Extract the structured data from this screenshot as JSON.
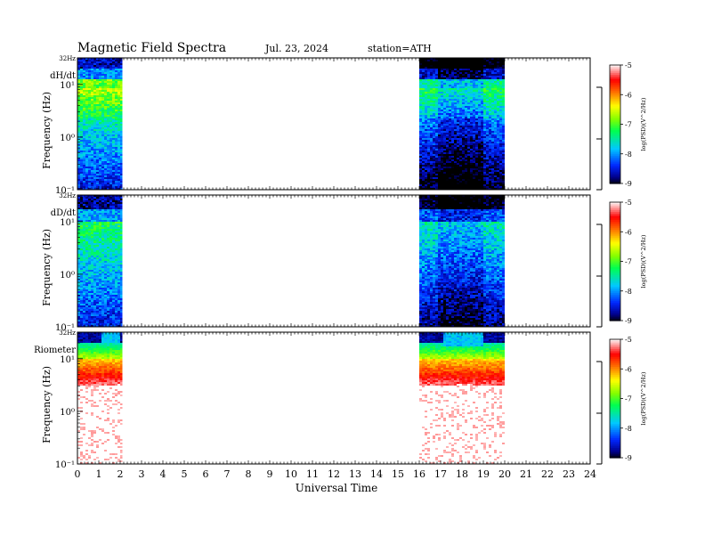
{
  "header": {
    "title": "Magnetic  Field  Spectra",
    "date": "Jul.  23, 2024",
    "station": "station=ATH"
  },
  "chart_data": [
    {
      "type": "heatmap",
      "panel_label": "dH/dt",
      "ylabel": "Frequency  (Hz)",
      "y_top_label": "32Hz",
      "yticks": [
        "10¹",
        "10⁰",
        "10⁻¹"
      ],
      "x_range": [
        0,
        24
      ],
      "y_log_range": [
        -1,
        1.505
      ],
      "data_intervals_ut": [
        [
          0,
          2.1
        ],
        [
          16,
          20
        ]
      ],
      "colorbar": {
        "ticks": [
          "-5",
          "-6",
          "-7",
          "-8",
          "-9"
        ],
        "label": "log(PSD)(V^2/Hz)",
        "range": [
          -9,
          -5
        ]
      }
    },
    {
      "type": "heatmap",
      "panel_label": "dD/dt",
      "ylabel": "Frequency  (Hz)",
      "y_top_label": "32Hz",
      "yticks": [
        "10¹",
        "10⁰",
        "10⁻¹"
      ],
      "x_range": [
        0,
        24
      ],
      "y_log_range": [
        -1,
        1.505
      ],
      "data_intervals_ut": [
        [
          0,
          2.1
        ],
        [
          16,
          20
        ]
      ],
      "colorbar": {
        "ticks": [
          "-5",
          "-6",
          "-7",
          "-8",
          "-9"
        ],
        "label": "log(PSD)(V^2/Hz)",
        "range": [
          -9,
          -5
        ]
      }
    },
    {
      "type": "heatmap",
      "panel_label": "Riometer",
      "ylabel": "Frequency  (Hz)",
      "y_top_label": "32Hz",
      "yticks": [
        "10¹",
        "10⁰",
        "10⁻¹"
      ],
      "x_range": [
        0,
        24
      ],
      "y_log_range": [
        -1,
        1.505
      ],
      "data_intervals_ut": [
        [
          0,
          2.1
        ],
        [
          16,
          20
        ]
      ],
      "colorbar": {
        "ticks": [
          "-5",
          "-6",
          "-7",
          "-8",
          "-9"
        ],
        "label": "log(PSD)(V^2/Hz)",
        "range": [
          -9,
          -5
        ]
      }
    }
  ],
  "x_axis": {
    "label": "Universal  Time",
    "ticks": [
      "0",
      "1",
      "2",
      "3",
      "4",
      "5",
      "6",
      "7",
      "8",
      "9",
      "10",
      "11",
      "12",
      "13",
      "14",
      "15",
      "16",
      "17",
      "18",
      "19",
      "20",
      "21",
      "22",
      "23",
      "24"
    ]
  }
}
